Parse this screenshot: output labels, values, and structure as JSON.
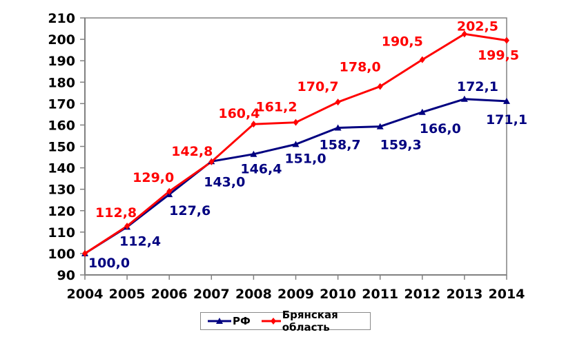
{
  "chart_data": {
    "type": "line",
    "title": "",
    "xlabel": "",
    "ylabel": "",
    "x": [
      "2004",
      "2005",
      "2006",
      "2007",
      "2008",
      "2009",
      "2010",
      "2011",
      "2012",
      "2013",
      "2014"
    ],
    "ylim": [
      90,
      210
    ],
    "yticks": [
      "90",
      "100",
      "110",
      "120",
      "130",
      "140",
      "150",
      "160",
      "170",
      "180",
      "190",
      "200",
      "210"
    ],
    "grid": false,
    "legend_position": "bottom",
    "series": [
      {
        "name": "РФ",
        "color": "#000080",
        "marker": "triangle",
        "values": [
          100.0,
          112.4,
          127.6,
          143.0,
          146.4,
          151.0,
          158.7,
          159.3,
          166.0,
          172.1,
          171.1
        ],
        "labels": [
          "100,0",
          "112,4",
          "127,6",
          "143,0",
          "146,4",
          "151,0",
          "158,7",
          "159,3",
          "166,0",
          "172,1",
          "171,1"
        ]
      },
      {
        "name": "Брянская область",
        "color": "#ff0000",
        "marker": "diamond",
        "values": [
          100.0,
          112.8,
          129.0,
          142.8,
          160.4,
          161.2,
          170.7,
          178.0,
          190.5,
          202.5,
          199.5
        ],
        "labels": [
          "",
          "112,8",
          "129,0",
          "142,8",
          "160,4",
          "161,2",
          "170,7",
          "178,0",
          "190,5",
          "202,5",
          "199,5"
        ]
      }
    ]
  }
}
